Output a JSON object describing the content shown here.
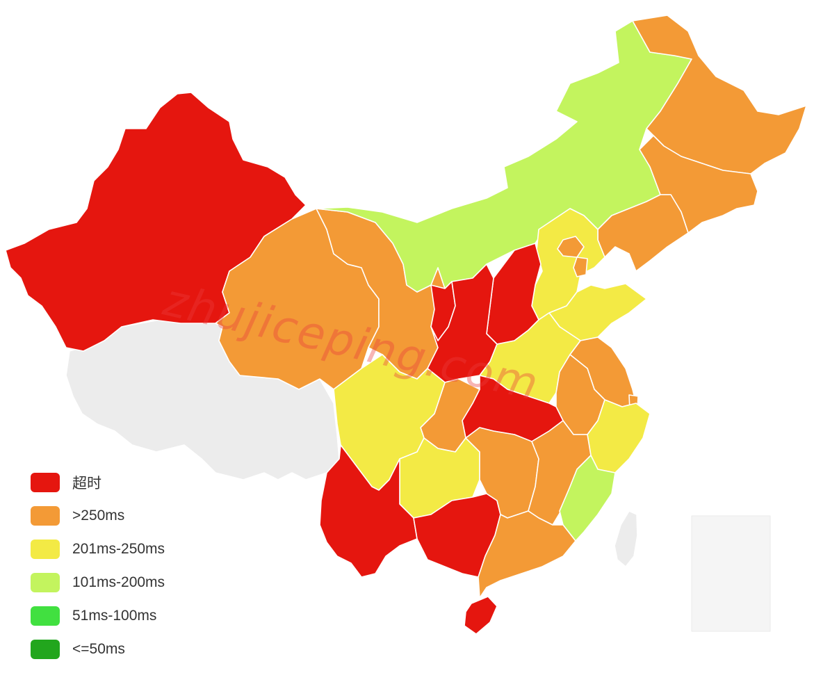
{
  "watermark": "zhujiceping.com",
  "legend": [
    {
      "label": "超时",
      "color": "#e5160f"
    },
    {
      "label": ">250ms",
      "color": "#f39a36"
    },
    {
      "label": "201ms-250ms",
      "color": "#f3ea45"
    },
    {
      "label": "101ms-200ms",
      "color": "#c3f45e"
    },
    {
      "label": "51ms-100ms",
      "color": "#41e040"
    },
    {
      "label": "<=50ms",
      "color": "#22a61d"
    }
  ],
  "no_data_color": "#ececec",
  "regions": [
    {
      "name": "xinjiang",
      "level": 0
    },
    {
      "name": "tibet",
      "level": -1
    },
    {
      "name": "qinghai",
      "level": 1
    },
    {
      "name": "gansu",
      "level": 1
    },
    {
      "name": "inner-mongolia",
      "level": 3
    },
    {
      "name": "heilongjiang",
      "level": 1
    },
    {
      "name": "jilin",
      "level": 1
    },
    {
      "name": "liaoning",
      "level": 1
    },
    {
      "name": "hebei",
      "level": 2
    },
    {
      "name": "beijing",
      "level": 1
    },
    {
      "name": "tianjin",
      "level": 1
    },
    {
      "name": "shanxi",
      "level": 0
    },
    {
      "name": "ningxia",
      "level": 0
    },
    {
      "name": "shaanxi",
      "level": 0
    },
    {
      "name": "shandong",
      "level": 2
    },
    {
      "name": "henan",
      "level": 2
    },
    {
      "name": "jiangsu",
      "level": 1
    },
    {
      "name": "anhui",
      "level": 1
    },
    {
      "name": "shanghai",
      "level": 1
    },
    {
      "name": "zhejiang",
      "level": 2
    },
    {
      "name": "hubei",
      "level": 0
    },
    {
      "name": "chongqing",
      "level": 1
    },
    {
      "name": "sichuan",
      "level": 2
    },
    {
      "name": "guizhou",
      "level": 2
    },
    {
      "name": "yunnan",
      "level": 0
    },
    {
      "name": "guangxi",
      "level": 0
    },
    {
      "name": "hunan",
      "level": 1
    },
    {
      "name": "jiangxi",
      "level": 1
    },
    {
      "name": "fujian",
      "level": 3
    },
    {
      "name": "guangdong",
      "level": 1
    },
    {
      "name": "hainan",
      "level": 0
    },
    {
      "name": "taiwan",
      "level": -1
    },
    {
      "name": "south-china-sea-inset",
      "level": -1
    }
  ]
}
